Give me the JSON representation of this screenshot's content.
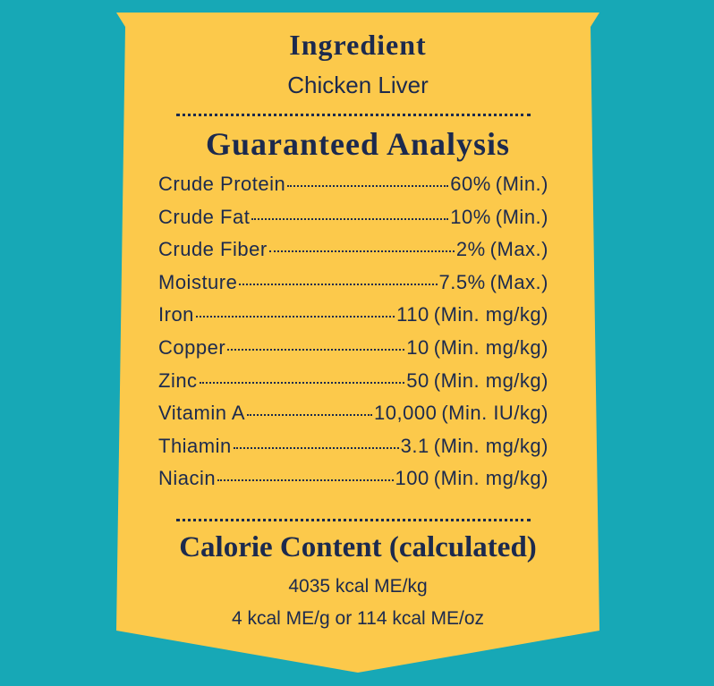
{
  "ingredient": {
    "title": "Ingredient",
    "value": "Chicken Liver"
  },
  "analysis": {
    "title": "Guaranteed Analysis",
    "rows": [
      [
        "Crude Protein",
        "60%",
        "(Min.)"
      ],
      [
        "Crude Fat",
        "10%",
        "(Min.)"
      ],
      [
        "Crude Fiber",
        "2%",
        "(Max.)"
      ],
      [
        "Moisture",
        "7.5%",
        "(Max.)"
      ],
      [
        "Iron",
        "110",
        "(Min. mg/kg)"
      ],
      [
        "Copper",
        "10",
        "(Min. mg/kg)"
      ],
      [
        "Zinc",
        "50",
        "(Min. mg/kg)"
      ],
      [
        "Vitamin A",
        "10,000",
        "(Min. IU/kg)"
      ],
      [
        "Thiamin",
        "3.1",
        "(Min. mg/kg)"
      ],
      [
        "Niacin",
        "100",
        "(Min. mg/kg)"
      ]
    ]
  },
  "calorie": {
    "title": "Calorie Content (calculated)",
    "lines": [
      "4035 kcal ME/kg",
      "4 kcal ME/g or 114 kcal ME/oz"
    ]
  }
}
